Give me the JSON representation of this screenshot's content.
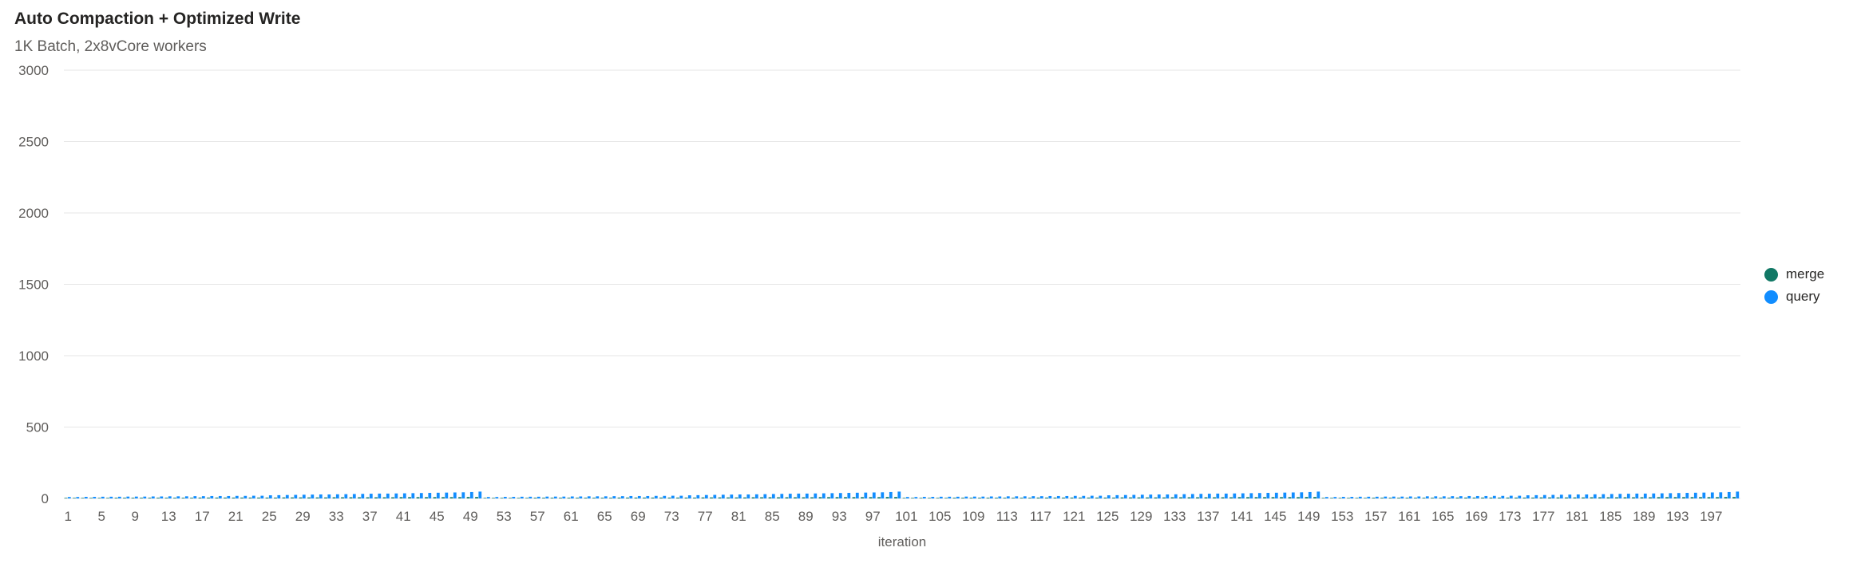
{
  "header": {
    "title": "Auto Compaction + Optimized Write",
    "subtitle": "1K Batch, 2x8vCore workers"
  },
  "legend": {
    "items": [
      {
        "label": "merge",
        "color": "#117865"
      },
      {
        "label": "query",
        "color": "#118DFF"
      }
    ]
  },
  "chart_data": {
    "type": "bar",
    "title": "Auto Compaction + Optimized Write",
    "subtitle": "1K Batch, 2x8vCore workers",
    "xlabel": "iteration",
    "ylabel": "",
    "ylim": [
      0,
      3000
    ],
    "yticks": [
      0,
      500,
      1000,
      1500,
      2000,
      2500,
      3000
    ],
    "x_range": [
      1,
      200
    ],
    "x_tick_step": 4,
    "grid": true,
    "legend_position": "right",
    "stacked": false,
    "series": [
      {
        "name": "merge",
        "color": "#117865",
        "values": [
          4,
          4,
          4,
          4,
          4,
          4,
          5,
          5,
          5,
          5,
          5,
          5,
          5,
          5,
          5,
          5,
          6,
          6,
          6,
          6,
          6,
          6,
          6,
          6,
          6,
          6,
          7,
          7,
          7,
          7,
          7,
          7,
          8,
          8,
          8,
          8,
          8,
          8,
          8,
          8,
          9,
          9,
          9,
          9,
          9,
          9,
          9,
          9,
          10,
          10,
          4,
          4,
          4,
          4,
          4,
          4,
          5,
          5,
          5,
          5,
          5,
          5,
          5,
          5,
          5,
          5,
          6,
          6,
          6,
          6,
          6,
          6,
          6,
          6,
          6,
          6,
          7,
          7,
          7,
          7,
          7,
          7,
          8,
          8,
          8,
          8,
          8,
          8,
          8,
          8,
          9,
          9,
          9,
          9,
          9,
          9,
          9,
          9,
          10,
          10,
          4,
          4,
          4,
          4,
          4,
          4,
          5,
          5,
          5,
          5,
          5,
          5,
          5,
          5,
          5,
          5,
          6,
          6,
          6,
          6,
          6,
          6,
          6,
          6,
          6,
          6,
          7,
          7,
          7,
          7,
          7,
          7,
          8,
          8,
          8,
          8,
          8,
          8,
          8,
          8,
          9,
          9,
          9,
          9,
          9,
          9,
          9,
          9,
          10,
          10,
          4,
          4,
          4,
          4,
          4,
          4,
          5,
          5,
          5,
          5,
          5,
          5,
          5,
          5,
          5,
          5,
          6,
          6,
          6,
          6,
          6,
          6,
          6,
          6,
          6,
          6,
          7,
          7,
          7,
          7,
          7,
          7,
          8,
          8,
          8,
          8,
          8,
          8,
          8,
          8,
          9,
          9,
          9,
          9,
          9,
          9,
          9,
          9,
          10,
          10
        ]
      },
      {
        "name": "query",
        "color": "#118DFF",
        "values": [
          10,
          10,
          11,
          11,
          12,
          12,
          12,
          13,
          13,
          13,
          14,
          14,
          15,
          15,
          15,
          16,
          16,
          17,
          17,
          17,
          18,
          18,
          19,
          19,
          22,
          23,
          24,
          25,
          26,
          27,
          28,
          28,
          29,
          30,
          31,
          32,
          33,
          34,
          34,
          35,
          36,
          37,
          38,
          39,
          40,
          41,
          42,
          43,
          45,
          48,
          10,
          10,
          11,
          11,
          12,
          12,
          12,
          13,
          13,
          13,
          14,
          14,
          15,
          15,
          15,
          16,
          16,
          17,
          17,
          17,
          18,
          18,
          19,
          19,
          22,
          23,
          24,
          25,
          26,
          27,
          28,
          28,
          29,
          30,
          31,
          32,
          33,
          34,
          34,
          35,
          36,
          37,
          38,
          39,
          40,
          41,
          42,
          43,
          45,
          48,
          10,
          10,
          11,
          11,
          12,
          12,
          12,
          13,
          13,
          13,
          14,
          14,
          15,
          15,
          15,
          16,
          16,
          17,
          17,
          17,
          18,
          18,
          19,
          19,
          22,
          23,
          24,
          25,
          26,
          27,
          28,
          28,
          29,
          30,
          31,
          32,
          33,
          34,
          34,
          35,
          36,
          37,
          38,
          39,
          40,
          41,
          42,
          43,
          45,
          48,
          10,
          10,
          11,
          11,
          12,
          12,
          12,
          13,
          13,
          13,
          14,
          14,
          15,
          15,
          15,
          16,
          16,
          17,
          17,
          17,
          18,
          18,
          19,
          19,
          22,
          23,
          24,
          25,
          26,
          27,
          28,
          28,
          29,
          30,
          31,
          32,
          33,
          34,
          34,
          35,
          36,
          37,
          38,
          39,
          40,
          41,
          42,
          43,
          45,
          48
        ]
      }
    ]
  }
}
